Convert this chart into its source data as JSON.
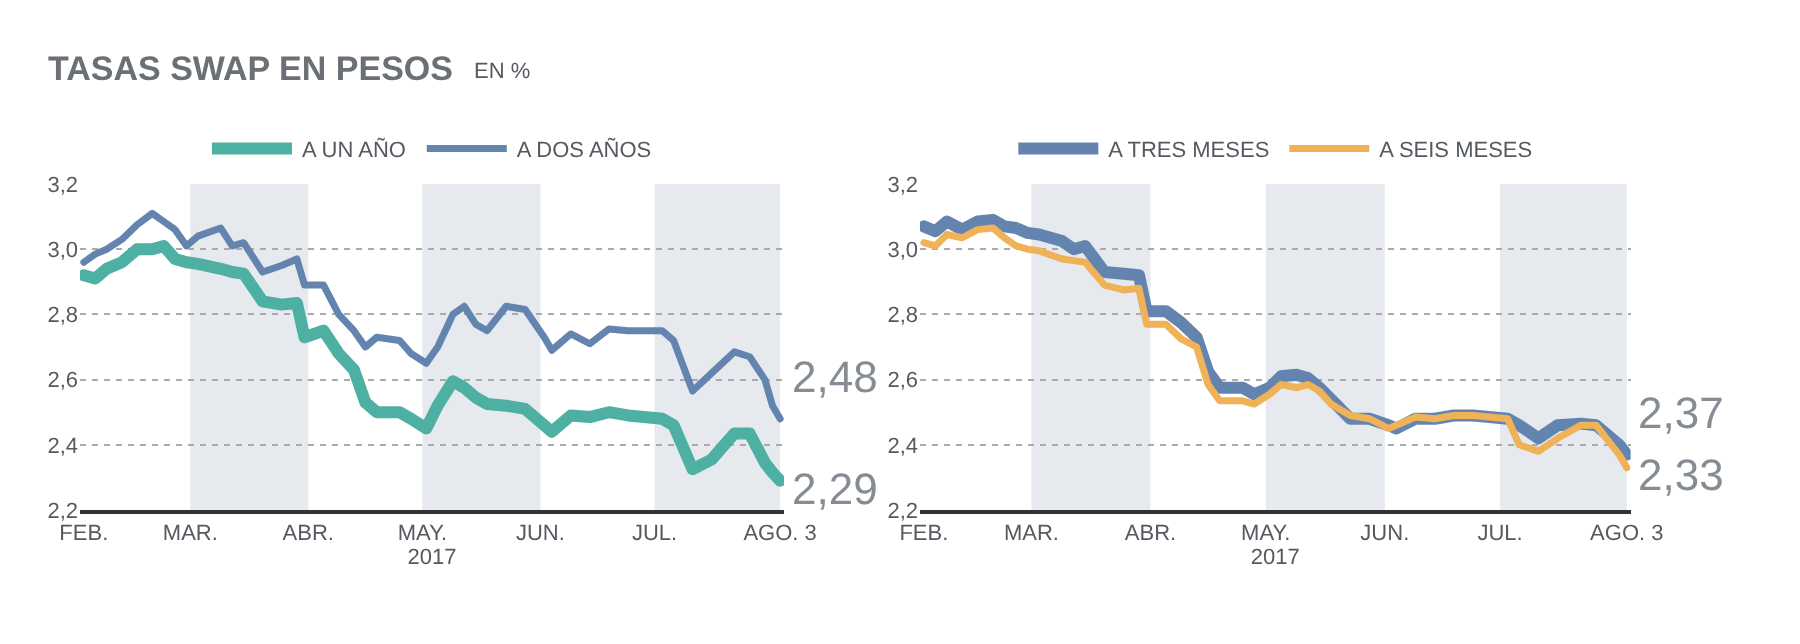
{
  "chart_data": [
    {
      "type": "line",
      "title": "TASAS SWAP EN PESOS",
      "subtitle": "EN %",
      "xlabel": "2017",
      "x": [
        "2017-02-01",
        "2017-02-04",
        "2017-02-07",
        "2017-02-11",
        "2017-02-15",
        "2017-02-19",
        "2017-02-22",
        "2017-02-25",
        "2017-02-28",
        "2017-03-03",
        "2017-03-09",
        "2017-03-12",
        "2017-03-15",
        "2017-03-20",
        "2017-03-25",
        "2017-03-29",
        "2017-03-31",
        "2017-04-05",
        "2017-04-09",
        "2017-04-13",
        "2017-04-16",
        "2017-04-19",
        "2017-04-25",
        "2017-04-28",
        "2017-05-02",
        "2017-05-05",
        "2017-05-09",
        "2017-05-12",
        "2017-05-15",
        "2017-05-18",
        "2017-05-23",
        "2017-05-28",
        "2017-06-02",
        "2017-06-04",
        "2017-06-09",
        "2017-06-14",
        "2017-06-19",
        "2017-06-24",
        "2017-07-03",
        "2017-07-06",
        "2017-07-11",
        "2017-07-16",
        "2017-07-22",
        "2017-07-26",
        "2017-07-30",
        "2017-08-01",
        "2017-08-03"
      ],
      "series": [
        {
          "name": "A UN AÑO",
          "color": "#4eb0a3",
          "values": [
            2.92,
            2.91,
            2.94,
            2.96,
            3.0,
            3.0,
            3.01,
            2.97,
            2.96,
            2.955,
            2.94,
            2.93,
            2.925,
            2.84,
            2.83,
            2.835,
            2.73,
            2.75,
            2.68,
            2.63,
            2.53,
            2.5,
            2.5,
            2.48,
            2.45,
            2.52,
            2.595,
            2.575,
            2.545,
            2.525,
            2.52,
            2.51,
            2.46,
            2.44,
            2.49,
            2.485,
            2.5,
            2.49,
            2.48,
            2.46,
            2.325,
            2.355,
            2.435,
            2.435,
            2.345,
            2.315,
            2.29
          ]
        },
        {
          "name": "A DOS AÑOS",
          "color": "#6484b0",
          "values": [
            2.96,
            2.985,
            3.0,
            3.03,
            3.075,
            3.11,
            3.085,
            3.06,
            3.01,
            3.04,
            3.065,
            3.01,
            3.02,
            2.93,
            2.95,
            2.97,
            2.89,
            2.89,
            2.8,
            2.75,
            2.7,
            2.73,
            2.72,
            2.68,
            2.65,
            2.7,
            2.8,
            2.825,
            2.77,
            2.75,
            2.825,
            2.815,
            2.73,
            2.69,
            2.74,
            2.71,
            2.755,
            2.75,
            2.75,
            2.72,
            2.565,
            2.62,
            2.685,
            2.67,
            2.6,
            2.52,
            2.48
          ]
        }
      ],
      "xlim": [
        "2017-01-31",
        "2017-08-04"
      ],
      "xticks": [
        {
          "value": "2017-02-01",
          "label": "FEB."
        },
        {
          "value": "2017-03-01",
          "label": "MAR."
        },
        {
          "value": "2017-04-01",
          "label": "ABR."
        },
        {
          "value": "2017-05-01",
          "label": "MAY."
        },
        {
          "value": "2017-06-01",
          "label": "JUN."
        },
        {
          "value": "2017-07-01",
          "label": "JUL."
        },
        {
          "value": "2017-08-03",
          "label": "AGO. 3"
        }
      ],
      "ylim": [
        2.2,
        3.2
      ],
      "yticks": [
        {
          "value": 2.2,
          "label": "2,2"
        },
        {
          "value": 2.4,
          "label": "2,4"
        },
        {
          "value": 2.6,
          "label": "2,6"
        },
        {
          "value": 2.8,
          "label": "2,8"
        },
        {
          "value": 3.0,
          "label": "3,0"
        },
        {
          "value": 3.2,
          "label": "3,2"
        }
      ],
      "bands": [
        {
          "axis": "x",
          "from": "2017-03-01",
          "to": "2017-04-01",
          "color": "#e6e9ed"
        },
        {
          "axis": "x",
          "from": "2017-05-01",
          "to": "2017-06-01",
          "color": "#e6e9ed"
        },
        {
          "axis": "x",
          "from": "2017-07-01",
          "to": "2017-08-03",
          "color": "#e6e9ed"
        }
      ],
      "annotations": [
        {
          "text": "2,48",
          "x": "2017-08-03",
          "y": 2.48
        },
        {
          "text": "2,29",
          "x": "2017-08-03",
          "y": 2.29
        }
      ],
      "grid": "y",
      "legend": "top",
      "line_style": "solid"
    },
    {
      "type": "line",
      "xlabel": "2017",
      "x": [
        "2017-02-01",
        "2017-02-04",
        "2017-02-07",
        "2017-02-11",
        "2017-02-15",
        "2017-02-19",
        "2017-02-22",
        "2017-02-25",
        "2017-02-28",
        "2017-03-03",
        "2017-03-09",
        "2017-03-12",
        "2017-03-15",
        "2017-03-20",
        "2017-03-25",
        "2017-03-29",
        "2017-03-31",
        "2017-04-05",
        "2017-04-09",
        "2017-04-13",
        "2017-04-16",
        "2017-04-19",
        "2017-04-25",
        "2017-04-28",
        "2017-05-02",
        "2017-05-05",
        "2017-05-09",
        "2017-05-12",
        "2017-05-15",
        "2017-05-18",
        "2017-05-23",
        "2017-05-28",
        "2017-06-02",
        "2017-06-04",
        "2017-06-09",
        "2017-06-14",
        "2017-06-19",
        "2017-06-24",
        "2017-07-03",
        "2017-07-06",
        "2017-07-11",
        "2017-07-16",
        "2017-07-22",
        "2017-07-26",
        "2017-07-30",
        "2017-08-01",
        "2017-08-03"
      ],
      "series": [
        {
          "name": "A TRES MESES",
          "color": "#6484b0",
          "values": [
            3.07,
            3.055,
            3.085,
            3.06,
            3.085,
            3.09,
            3.07,
            3.065,
            3.05,
            3.045,
            3.025,
            3.0,
            3.01,
            2.93,
            2.925,
            2.92,
            2.81,
            2.81,
            2.775,
            2.73,
            2.625,
            2.575,
            2.575,
            2.555,
            2.575,
            2.61,
            2.615,
            2.605,
            2.575,
            2.54,
            2.48,
            2.48,
            2.46,
            2.45,
            2.48,
            2.48,
            2.49,
            2.49,
            2.48,
            2.46,
            2.42,
            2.46,
            2.465,
            2.46,
            2.42,
            2.4,
            2.37
          ]
        },
        {
          "name": "A SEIS MESES",
          "color": "#f0b257",
          "values": [
            3.02,
            3.01,
            3.045,
            3.035,
            3.06,
            3.065,
            3.035,
            3.01,
            3.0,
            2.995,
            2.97,
            2.965,
            2.96,
            2.89,
            2.875,
            2.88,
            2.77,
            2.77,
            2.725,
            2.7,
            2.585,
            2.535,
            2.535,
            2.525,
            2.555,
            2.585,
            2.575,
            2.585,
            2.565,
            2.525,
            2.49,
            2.48,
            2.45,
            2.46,
            2.485,
            2.48,
            2.49,
            2.49,
            2.48,
            2.4,
            2.38,
            2.42,
            2.46,
            2.46,
            2.4,
            2.37,
            2.33
          ]
        }
      ],
      "xlim": [
        "2017-01-31",
        "2017-08-04"
      ],
      "xticks": [
        {
          "value": "2017-02-01",
          "label": "FEB."
        },
        {
          "value": "2017-03-01",
          "label": "MAR."
        },
        {
          "value": "2017-04-01",
          "label": "ABR."
        },
        {
          "value": "2017-05-01",
          "label": "MAY."
        },
        {
          "value": "2017-06-01",
          "label": "JUN."
        },
        {
          "value": "2017-07-01",
          "label": "JUL."
        },
        {
          "value": "2017-08-03",
          "label": "AGO. 3"
        }
      ],
      "ylim": [
        2.2,
        3.2
      ],
      "yticks": [
        {
          "value": 2.2,
          "label": "2,2"
        },
        {
          "value": 2.4,
          "label": "2,4"
        },
        {
          "value": 2.6,
          "label": "2,6"
        },
        {
          "value": 2.8,
          "label": "2,8"
        },
        {
          "value": 3.0,
          "label": "3,0"
        },
        {
          "value": 3.2,
          "label": "3,2"
        }
      ],
      "bands": [
        {
          "axis": "x",
          "from": "2017-03-01",
          "to": "2017-04-01",
          "color": "#e6e9ed"
        },
        {
          "axis": "x",
          "from": "2017-05-01",
          "to": "2017-06-01",
          "color": "#e6e9ed"
        },
        {
          "axis": "x",
          "from": "2017-07-01",
          "to": "2017-08-03",
          "color": "#e6e9ed"
        }
      ],
      "annotations": [
        {
          "text": "2,37",
          "x": "2017-08-03",
          "y": 2.37
        },
        {
          "text": "2,33",
          "x": "2017-08-03",
          "y": 2.33
        }
      ],
      "grid": "y",
      "legend": "top",
      "line_style": "solid"
    }
  ]
}
